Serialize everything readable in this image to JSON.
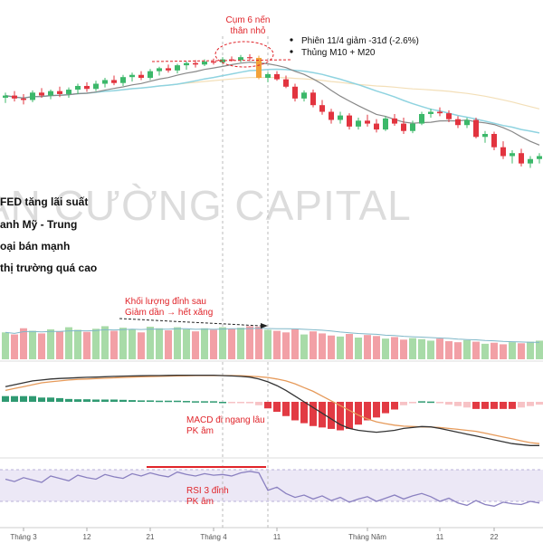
{
  "watermark": "AN CƯỜNG CAPITAL",
  "news_items": [
    "FED tăng lãi suất",
    "anh Mỹ - Trung",
    "oại bán mạnh",
    "thị trường quá cao"
  ],
  "annotations": {
    "cluster_line1": "Cụm 6 nến",
    "cluster_line2": "thân nhỏ",
    "bullet1": "Phiên 11/4 giảm -31đ (-2.6%)",
    "bullet2": "Thủng M10 + M20",
    "volume_line1": "Khối lượng đỉnh sau",
    "volume_line2": "Giảm dần → hết xăng",
    "macd_line1": "MACD đi ngang lâu",
    "macd_line2": "PK âm",
    "rsi_line1": "RSI 3 đỉnh",
    "rsi_line2": "PK âm"
  },
  "x_ticks": [
    "Tháng 3",
    "12",
    "21",
    "Tháng 4",
    "11",
    "Tháng Năm",
    "11",
    "22"
  ],
  "colors": {
    "up": "#3cb86a",
    "down": "#e2343f",
    "ma10": "#888888",
    "ma20": "#8fd3e0",
    "ma_long": "#f3dfb8",
    "vol_up": "#a8dba8",
    "vol_down": "#f2a0a6",
    "macd": "#333333",
    "signal": "#e69a5a",
    "rsi": "#8a80c0",
    "rsi_band": "#ece8f6",
    "annotation": "#e0242a"
  },
  "chart_data": {
    "type": "candlestick",
    "x_ticks": [
      "Tháng 3",
      "12",
      "21",
      "Tháng 4",
      "11",
      "Tháng Năm",
      "11",
      "22"
    ],
    "candles": [
      {
        "o": 1085,
        "h": 1092,
        "l": 1078,
        "c": 1088
      },
      {
        "o": 1088,
        "h": 1094,
        "l": 1080,
        "c": 1084
      },
      {
        "o": 1084,
        "h": 1090,
        "l": 1076,
        "c": 1082
      },
      {
        "o": 1082,
        "h": 1095,
        "l": 1079,
        "c": 1092
      },
      {
        "o": 1092,
        "h": 1098,
        "l": 1085,
        "c": 1088
      },
      {
        "o": 1088,
        "h": 1096,
        "l": 1083,
        "c": 1094
      },
      {
        "o": 1094,
        "h": 1100,
        "l": 1086,
        "c": 1090
      },
      {
        "o": 1090,
        "h": 1099,
        "l": 1085,
        "c": 1096
      },
      {
        "o": 1096,
        "h": 1104,
        "l": 1090,
        "c": 1101
      },
      {
        "o": 1101,
        "h": 1106,
        "l": 1093,
        "c": 1097
      },
      {
        "o": 1097,
        "h": 1108,
        "l": 1094,
        "c": 1104
      },
      {
        "o": 1104,
        "h": 1112,
        "l": 1099,
        "c": 1109
      },
      {
        "o": 1109,
        "h": 1115,
        "l": 1102,
        "c": 1105
      },
      {
        "o": 1105,
        "h": 1116,
        "l": 1101,
        "c": 1113
      },
      {
        "o": 1113,
        "h": 1119,
        "l": 1107,
        "c": 1116
      },
      {
        "o": 1116,
        "h": 1121,
        "l": 1109,
        "c": 1112
      },
      {
        "o": 1112,
        "h": 1124,
        "l": 1109,
        "c": 1121
      },
      {
        "o": 1121,
        "h": 1127,
        "l": 1115,
        "c": 1125
      },
      {
        "o": 1125,
        "h": 1130,
        "l": 1119,
        "c": 1122
      },
      {
        "o": 1122,
        "h": 1131,
        "l": 1118,
        "c": 1129
      },
      {
        "o": 1129,
        "h": 1134,
        "l": 1123,
        "c": 1132
      },
      {
        "o": 1132,
        "h": 1136,
        "l": 1126,
        "c": 1130
      },
      {
        "o": 1130,
        "h": 1137,
        "l": 1128,
        "c": 1134
      },
      {
        "o": 1134,
        "h": 1138,
        "l": 1130,
        "c": 1133
      },
      {
        "o": 1133,
        "h": 1140,
        "l": 1131,
        "c": 1137
      },
      {
        "o": 1137,
        "h": 1141,
        "l": 1134,
        "c": 1136
      },
      {
        "o": 1136,
        "h": 1143,
        "l": 1133,
        "c": 1140
      },
      {
        "o": 1140,
        "h": 1144,
        "l": 1135,
        "c": 1139
      },
      {
        "o": 1139,
        "h": 1142,
        "l": 1110,
        "c": 1112
      },
      {
        "o": 1112,
        "h": 1120,
        "l": 1106,
        "c": 1117
      },
      {
        "o": 1117,
        "h": 1121,
        "l": 1108,
        "c": 1110
      },
      {
        "o": 1110,
        "h": 1115,
        "l": 1098,
        "c": 1100
      },
      {
        "o": 1100,
        "h": 1104,
        "l": 1080,
        "c": 1084
      },
      {
        "o": 1084,
        "h": 1095,
        "l": 1080,
        "c": 1092
      },
      {
        "o": 1092,
        "h": 1096,
        "l": 1072,
        "c": 1075
      },
      {
        "o": 1075,
        "h": 1082,
        "l": 1062,
        "c": 1066
      },
      {
        "o": 1066,
        "h": 1070,
        "l": 1050,
        "c": 1055
      },
      {
        "o": 1055,
        "h": 1066,
        "l": 1050,
        "c": 1061
      },
      {
        "o": 1061,
        "h": 1064,
        "l": 1042,
        "c": 1046
      },
      {
        "o": 1046,
        "h": 1058,
        "l": 1042,
        "c": 1054
      },
      {
        "o": 1054,
        "h": 1062,
        "l": 1046,
        "c": 1050
      },
      {
        "o": 1050,
        "h": 1056,
        "l": 1038,
        "c": 1042
      },
      {
        "o": 1042,
        "h": 1060,
        "l": 1040,
        "c": 1057
      },
      {
        "o": 1057,
        "h": 1063,
        "l": 1047,
        "c": 1050
      },
      {
        "o": 1050,
        "h": 1058,
        "l": 1036,
        "c": 1040
      },
      {
        "o": 1040,
        "h": 1054,
        "l": 1037,
        "c": 1050
      },
      {
        "o": 1050,
        "h": 1066,
        "l": 1048,
        "c": 1063
      },
      {
        "o": 1063,
        "h": 1070,
        "l": 1058,
        "c": 1066
      },
      {
        "o": 1066,
        "h": 1072,
        "l": 1060,
        "c": 1064
      },
      {
        "o": 1064,
        "h": 1068,
        "l": 1052,
        "c": 1056
      },
      {
        "o": 1056,
        "h": 1060,
        "l": 1044,
        "c": 1048
      },
      {
        "o": 1048,
        "h": 1058,
        "l": 1044,
        "c": 1055
      },
      {
        "o": 1055,
        "h": 1058,
        "l": 1030,
        "c": 1032
      },
      {
        "o": 1032,
        "h": 1040,
        "l": 1024,
        "c": 1036
      },
      {
        "o": 1036,
        "h": 1039,
        "l": 1014,
        "c": 1018
      },
      {
        "o": 1018,
        "h": 1026,
        "l": 1002,
        "c": 1006
      },
      {
        "o": 1006,
        "h": 1014,
        "l": 996,
        "c": 1010
      },
      {
        "o": 1010,
        "h": 1016,
        "l": 992,
        "c": 996
      },
      {
        "o": 996,
        "h": 1006,
        "l": 990,
        "c": 1002
      },
      {
        "o": 1002,
        "h": 1010,
        "l": 996,
        "c": 1006
      }
    ],
    "volume": [
      52,
      48,
      60,
      55,
      50,
      58,
      54,
      62,
      57,
      53,
      59,
      64,
      55,
      61,
      58,
      52,
      63,
      60,
      56,
      62,
      58,
      54,
      60,
      57,
      62,
      59,
      61,
      64,
      63,
      57,
      55,
      52,
      58,
      48,
      54,
      50,
      46,
      44,
      49,
      42,
      47,
      45,
      40,
      43,
      38,
      41,
      39,
      36,
      40,
      35,
      33,
      37,
      34,
      30,
      32,
      29,
      33,
      31,
      34,
      36
    ],
    "macd": [
      8,
      9,
      10,
      11,
      11.5,
      12,
      12.3,
      12.5,
      12.7,
      12.9,
      13,
      13.2,
      13.4,
      13.5,
      13.6,
      13.7,
      13.8,
      13.8,
      13.9,
      14,
      14,
      14,
      14,
      14,
      13.8,
      13.6,
      13.4,
      13,
      12,
      10.5,
      8.5,
      6,
      3,
      0,
      -3,
      -6,
      -9,
      -12,
      -14,
      -15,
      -15.5,
      -16,
      -15.5,
      -15,
      -14,
      -13.5,
      -13,
      -13.2,
      -14,
      -15,
      -16,
      -17,
      -18,
      -19,
      -20,
      -21,
      -22,
      -22.5,
      -23,
      -23
    ],
    "macd_signal": [
      6,
      7,
      8,
      9,
      10,
      10.5,
      11,
      11.5,
      11.8,
      12,
      12.2,
      12.4,
      12.6,
      12.8,
      13,
      13.2,
      13.3,
      13.4,
      13.5,
      13.6,
      13.7,
      13.8,
      13.8,
      13.8,
      13.8,
      13.8,
      13.7,
      13.5,
      13.2,
      12.8,
      12,
      11,
      9.5,
      7.5,
      5.5,
      3,
      0.5,
      -2,
      -4.5,
      -7,
      -9,
      -10.5,
      -11.5,
      -12.3,
      -12.8,
      -13,
      -13.2,
      -13.3,
      -13.5,
      -14,
      -14.5,
      -15,
      -15.5,
      -16.5,
      -17.5,
      -18.5,
      -19.5,
      -20.5,
      -21.5,
      -22
    ],
    "rsi": [
      58,
      55,
      60,
      57,
      54,
      62,
      59,
      56,
      63,
      60,
      58,
      64,
      61,
      59,
      65,
      62,
      66,
      63,
      61,
      67,
      64,
      62,
      65,
      63,
      64,
      62,
      66,
      68,
      66,
      44,
      48,
      40,
      35,
      38,
      33,
      37,
      31,
      35,
      29,
      33,
      36,
      30,
      34,
      38,
      33,
      37,
      40,
      36,
      30,
      34,
      28,
      25,
      31,
      26,
      24,
      29,
      27,
      26,
      30,
      28
    ]
  }
}
